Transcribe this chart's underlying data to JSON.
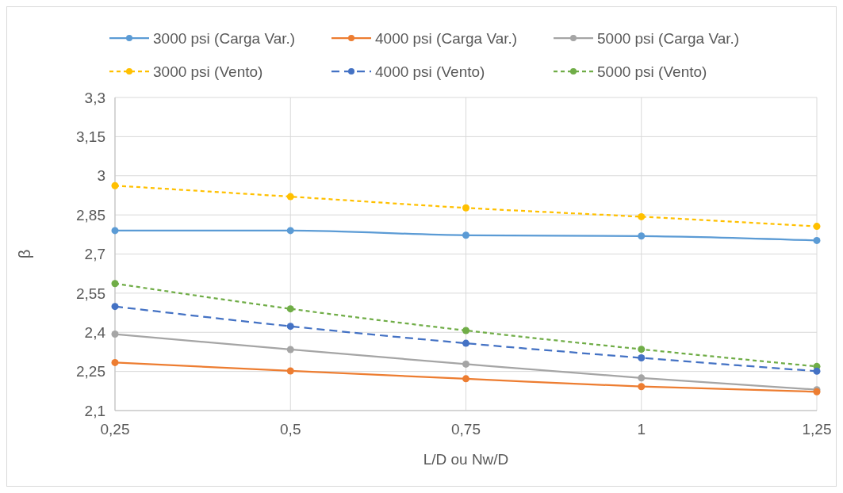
{
  "chart_data": {
    "type": "line",
    "xlabel": "L/D ou Nw/D",
    "ylabel": "β",
    "x": [
      0.25,
      0.5,
      0.75,
      1,
      1.25
    ],
    "xlim": [
      0.25,
      1.25
    ],
    "xticks": [
      {
        "value": 0.25,
        "label": "0,25"
      },
      {
        "value": 0.5,
        "label": "0,5"
      },
      {
        "value": 0.75,
        "label": "0,75"
      },
      1,
      {
        "value": 1.25,
        "label": "1,25"
      }
    ],
    "ylim": [
      2.1,
      3.3
    ],
    "yticks": [
      {
        "value": 2.1,
        "label": "2,1"
      },
      {
        "value": 2.25,
        "label": "2,25"
      },
      {
        "value": 2.4,
        "label": "2,4"
      },
      {
        "value": 2.55,
        "label": "2,55"
      },
      {
        "value": 2.7,
        "label": "2,7"
      },
      {
        "value": 2.85,
        "label": "2,85"
      },
      3,
      {
        "value": 3.15,
        "label": "3,15"
      },
      {
        "value": 3.3,
        "label": "3,3"
      }
    ],
    "grid": true,
    "legend": "top",
    "marker": "circle",
    "series": [
      {
        "name": "3000 psi (Carga Var.)",
        "color": "#5b9bd5",
        "line_style": "solid",
        "values": [
          2.79,
          2.79,
          2.772,
          2.769,
          2.752
        ]
      },
      {
        "name": "4000 psi (Carga Var.)",
        "color": "#ed7d31",
        "line_style": "solid",
        "values": [
          2.284,
          2.252,
          2.222,
          2.192,
          2.172
        ]
      },
      {
        "name": "5000 psi (Carga Var.)",
        "color": "#a5a5a5",
        "line_style": "solid",
        "values": [
          2.393,
          2.334,
          2.278,
          2.225,
          2.18
        ]
      },
      {
        "name": "3000 psi (Vento)",
        "color": "#ffc000",
        "line_style": "dotted",
        "values": [
          2.962,
          2.92,
          2.877,
          2.843,
          2.806
        ]
      },
      {
        "name": "4000 psi (Vento)",
        "color": "#4472c4",
        "line_style": "dashed",
        "values": [
          2.499,
          2.423,
          2.358,
          2.302,
          2.251
        ]
      },
      {
        "name": "5000 psi (Vento)",
        "color": "#70ad47",
        "line_style": "dotted",
        "values": [
          2.587,
          2.49,
          2.407,
          2.335,
          2.269
        ]
      }
    ]
  }
}
